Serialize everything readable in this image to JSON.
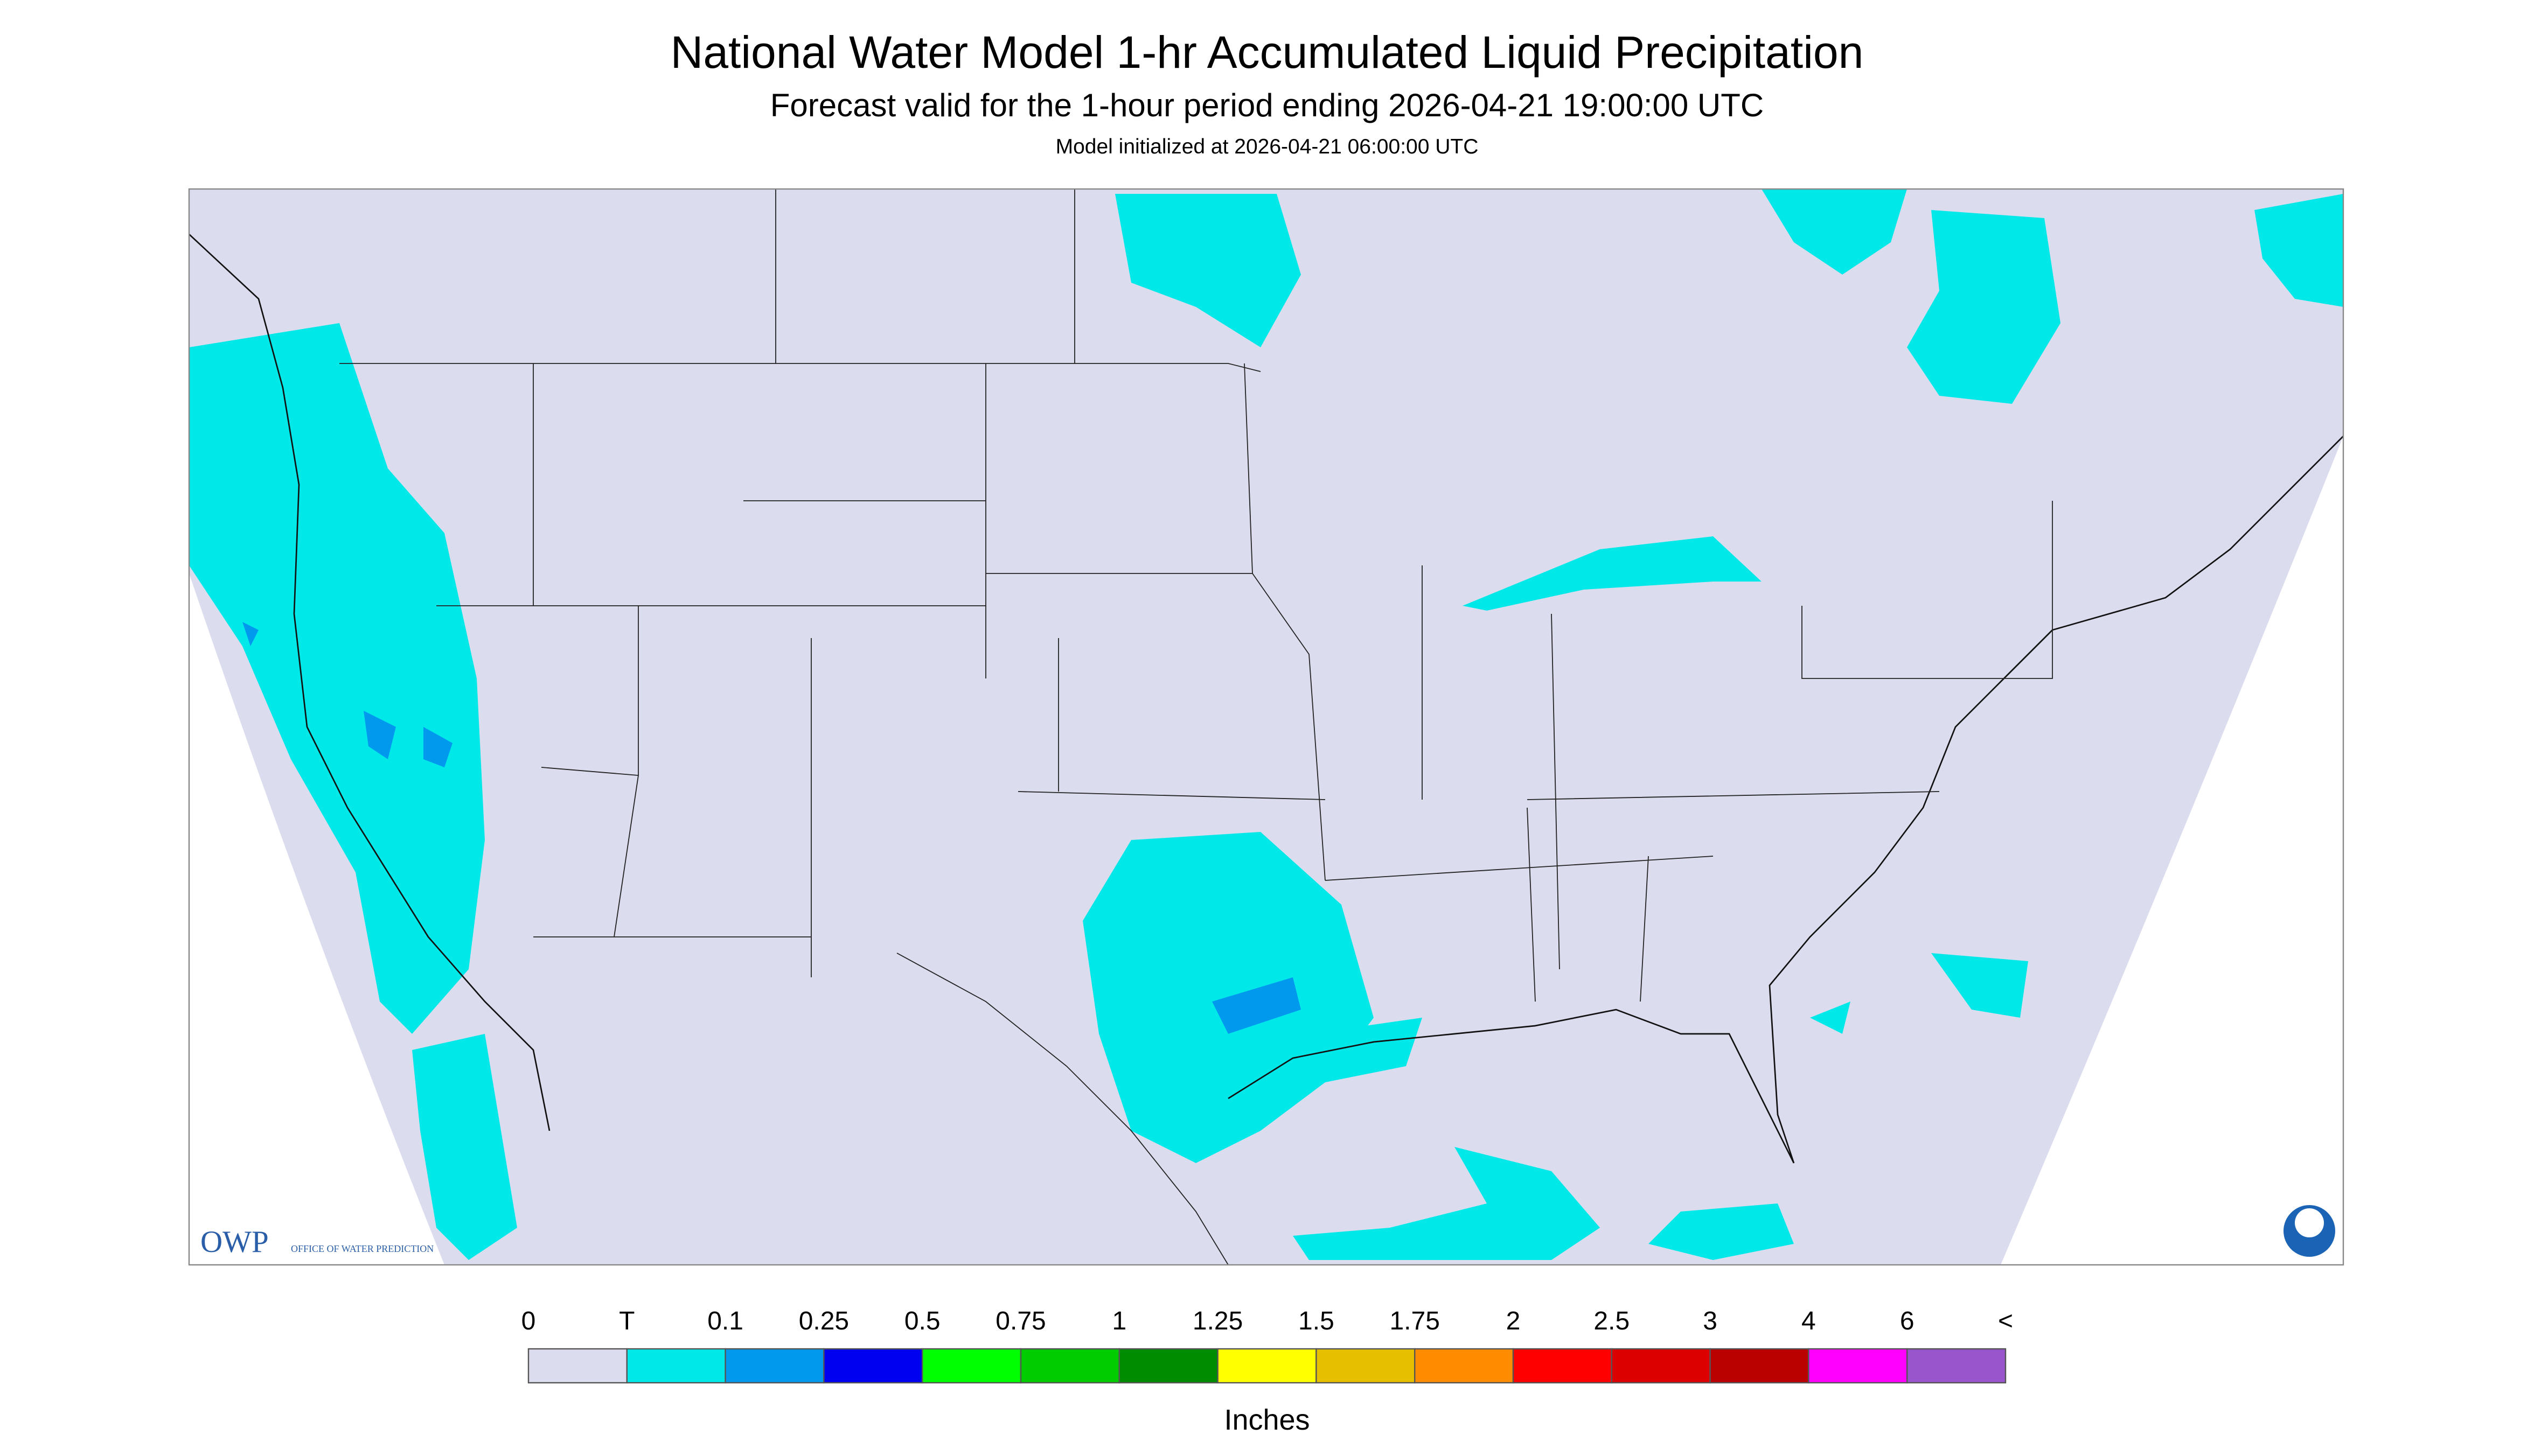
{
  "header": {
    "title": "National Water Model 1-hr Accumulated Liquid Precipitation",
    "subtitle": "Forecast valid for the 1-hour period ending 2026-04-21 19:00:00 UTC",
    "note": "Model initialized at 2026-04-21 06:00:00 UTC"
  },
  "map": {
    "background": "#dcdcef",
    "outside": "#ffffff",
    "logo": {
      "abbr": "OWP",
      "name": "OFFICE OF WATER PREDICTION"
    }
  },
  "legend": {
    "labels": [
      "0",
      "T",
      "0.1",
      "0.25",
      "0.5",
      "0.75",
      "1",
      "1.25",
      "1.5",
      "1.75",
      "2",
      "2.5",
      "3",
      "4",
      "6",
      "<"
    ],
    "colors": [
      "#dcdcef",
      "#00e8e8",
      "#0099ee",
      "#0000f0",
      "#00ff00",
      "#00cc00",
      "#008c00",
      "#ffff00",
      "#e6c000",
      "#ff8c00",
      "#ff0000",
      "#dd0000",
      "#bb0000",
      "#ff00ff",
      "#9955cc"
    ],
    "unit": "Inches"
  }
}
